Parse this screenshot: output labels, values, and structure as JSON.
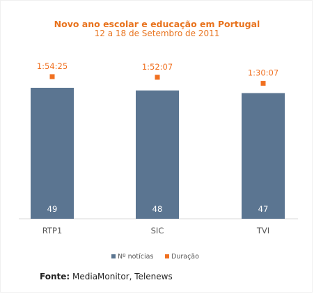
{
  "chart_data": {
    "type": "bar",
    "title": "Novo ano escolar e educação em Portugal",
    "subtitle": "12 a 18 de Setembro de 2011",
    "categories": [
      "RTP1",
      "SIC",
      "TVI"
    ],
    "series": [
      {
        "name": "Nº notícias",
        "type": "bar",
        "values": [
          49,
          48,
          47
        ],
        "color": "#5b7591"
      },
      {
        "name": "Duração",
        "type": "point",
        "values": [
          "1:54:25",
          "1:52:07",
          "1:30:07"
        ],
        "seconds": [
          6865,
          6727,
          5407
        ],
        "color": "#f07020"
      }
    ],
    "legend": "bottom",
    "grid": false
  },
  "source": {
    "label": "Fonte:",
    "text": "MediaMonitor, Telenews"
  }
}
